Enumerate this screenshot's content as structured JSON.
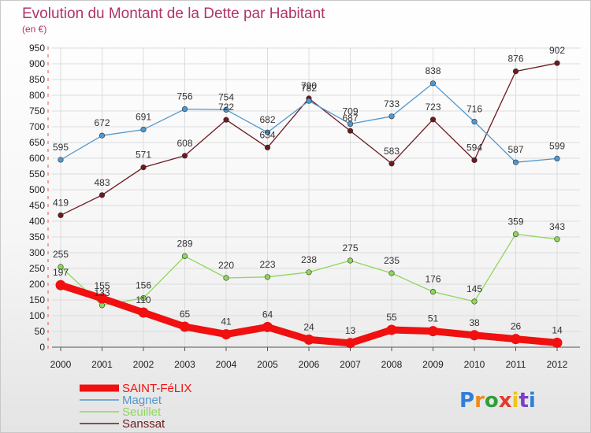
{
  "chart_data": {
    "type": "line",
    "title": "Evolution du Montant de la Dette par Habitant",
    "subtitle": "(en €)",
    "x": [
      "2000",
      "2001",
      "2002",
      "2003",
      "2004",
      "2005",
      "2006",
      "2007",
      "2008",
      "2009",
      "2010",
      "2011",
      "2012"
    ],
    "ylim": [
      0,
      950
    ],
    "yticks": [
      0,
      50,
      100,
      150,
      200,
      250,
      300,
      350,
      400,
      450,
      500,
      550,
      600,
      650,
      700,
      750,
      800,
      850,
      900,
      950
    ],
    "grid": true,
    "legend_position": "bottom-left",
    "series": [
      {
        "name": "Sanssat",
        "color": "#6b1a1f",
        "values": [
          419,
          483,
          571,
          608,
          722,
          634,
          790,
          687,
          583,
          723,
          594,
          876,
          902
        ]
      },
      {
        "name": "Magnet",
        "color": "#4f98cf",
        "values": [
          595,
          672,
          691,
          756,
          754,
          682,
          782,
          709,
          733,
          838,
          716,
          587,
          599
        ]
      },
      {
        "name": "Seuillet",
        "color": "#8fd65a",
        "values": [
          255,
          133,
          156,
          289,
          220,
          223,
          238,
          275,
          235,
          176,
          145,
          359,
          343
        ]
      },
      {
        "name": "SAINT-FéLIX",
        "color": "#f01010",
        "values": [
          197,
          155,
          110,
          65,
          41,
          64,
          24,
          13,
          55,
          51,
          38,
          26,
          14
        ]
      }
    ],
    "legend": [
      "SAINT-FéLIX",
      "Magnet",
      "Seuillet",
      "Sanssat"
    ]
  },
  "logo": {
    "text": "Proxiti"
  }
}
